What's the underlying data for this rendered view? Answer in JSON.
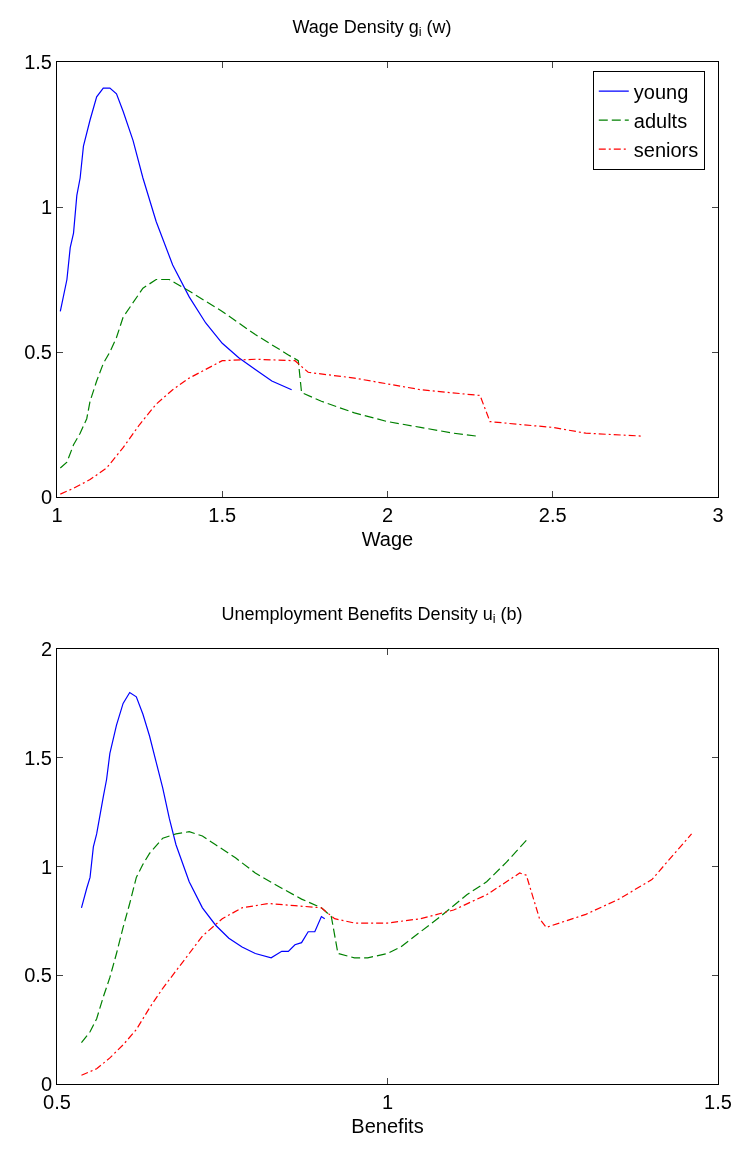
{
  "chart_data": [
    {
      "type": "line",
      "title": "Wage Density g$_{i}$ (w)",
      "xlabel": "Wage",
      "xlim": [
        1,
        3
      ],
      "xticks": [
        1,
        1.5,
        2,
        2.5,
        3
      ],
      "ylim": [
        0,
        1.5
      ],
      "yticks": [
        0,
        0.5,
        1,
        1.5
      ],
      "grid": false,
      "legend": "top right",
      "marker": "none",
      "series": [
        {
          "name": "young",
          "color": "#0000ff",
          "line_style": "solid",
          "x": [
            1.01,
            1.03,
            1.04,
            1.05,
            1.06,
            1.07,
            1.08,
            1.1,
            1.12,
            1.14,
            1.16,
            1.18,
            1.2,
            1.23,
            1.26,
            1.3,
            1.35,
            1.4,
            1.45,
            1.5,
            1.55,
            1.6,
            1.65,
            1.71
          ],
          "values": [
            0.64,
            0.75,
            0.86,
            0.91,
            1.04,
            1.1,
            1.21,
            1.3,
            1.38,
            1.41,
            1.41,
            1.39,
            1.33,
            1.23,
            1.1,
            0.95,
            0.8,
            0.69,
            0.6,
            0.53,
            0.48,
            0.44,
            0.4,
            0.37
          ]
        },
        {
          "name": "adults",
          "color": "#008000",
          "line_style": "dashed",
          "x": [
            1.01,
            1.03,
            1.05,
            1.07,
            1.09,
            1.1,
            1.12,
            1.14,
            1.16,
            1.18,
            1.2,
            1.23,
            1.26,
            1.3,
            1.34,
            1.4,
            1.5,
            1.6,
            1.7,
            1.73,
            1.74,
            1.8,
            1.9,
            2.0,
            2.1,
            2.2,
            2.27
          ],
          "values": [
            0.1,
            0.12,
            0.18,
            0.22,
            0.27,
            0.33,
            0.4,
            0.46,
            0.5,
            0.55,
            0.62,
            0.67,
            0.72,
            0.75,
            0.75,
            0.71,
            0.64,
            0.56,
            0.49,
            0.47,
            0.36,
            0.33,
            0.29,
            0.26,
            0.24,
            0.22,
            0.21
          ]
        },
        {
          "name": "seniors",
          "color": "#ff0000",
          "line_style": "dashdot",
          "x": [
            1.01,
            1.05,
            1.1,
            1.15,
            1.2,
            1.25,
            1.3,
            1.35,
            1.4,
            1.5,
            1.6,
            1.72,
            1.76,
            1.9,
            2.0,
            2.1,
            2.28,
            2.31,
            2.4,
            2.5,
            2.6,
            2.77
          ],
          "values": [
            0.01,
            0.03,
            0.06,
            0.1,
            0.17,
            0.25,
            0.32,
            0.37,
            0.41,
            0.47,
            0.475,
            0.47,
            0.43,
            0.41,
            0.39,
            0.37,
            0.35,
            0.26,
            0.25,
            0.24,
            0.22,
            0.21
          ]
        }
      ]
    },
    {
      "type": "line",
      "title": "Unemployment Benefits Density u$_{i}$ (b)",
      "xlabel": "Benefits",
      "xlim": [
        0.5,
        1.5
      ],
      "xticks": [
        0.5,
        1,
        1.5
      ],
      "ylim": [
        0,
        2
      ],
      "yticks": [
        0,
        0.5,
        1,
        1.5,
        2
      ],
      "grid": false,
      "legend": false,
      "marker": "none",
      "series": [
        {
          "color": "#0000ff",
          "line_style": "solid",
          "x": [
            0.537,
            0.545,
            0.55,
            0.555,
            0.56,
            0.57,
            0.575,
            0.58,
            0.59,
            0.6,
            0.61,
            0.62,
            0.63,
            0.64,
            0.65,
            0.66,
            0.67,
            0.68,
            0.7,
            0.72,
            0.74,
            0.76,
            0.78,
            0.8,
            0.824,
            0.84,
            0.85,
            0.86,
            0.87,
            0.88,
            0.89,
            0.9,
            0.905
          ],
          "values": [
            0.81,
            0.9,
            0.95,
            1.09,
            1.15,
            1.32,
            1.4,
            1.52,
            1.65,
            1.75,
            1.8,
            1.78,
            1.7,
            1.6,
            1.48,
            1.36,
            1.22,
            1.1,
            0.93,
            0.81,
            0.73,
            0.67,
            0.63,
            0.6,
            0.58,
            0.61,
            0.61,
            0.64,
            0.65,
            0.7,
            0.7,
            0.77,
            0.76
          ]
        },
        {
          "color": "#008000",
          "line_style": "dashed",
          "x": [
            0.537,
            0.55,
            0.56,
            0.57,
            0.58,
            0.59,
            0.6,
            0.61,
            0.62,
            0.63,
            0.64,
            0.66,
            0.68,
            0.7,
            0.72,
            0.74,
            0.77,
            0.8,
            0.84,
            0.87,
            0.9,
            0.915,
            0.925,
            0.95,
            0.97,
            1.0,
            1.02,
            1.05,
            1.08,
            1.12,
            1.15,
            1.18,
            1.21
          ],
          "values": [
            0.19,
            0.24,
            0.3,
            0.4,
            0.49,
            0.6,
            0.72,
            0.83,
            0.95,
            1.01,
            1.06,
            1.13,
            1.15,
            1.16,
            1.14,
            1.1,
            1.04,
            0.97,
            0.9,
            0.85,
            0.81,
            0.77,
            0.6,
            0.58,
            0.58,
            0.6,
            0.63,
            0.7,
            0.77,
            0.87,
            0.93,
            1.02,
            1.12
          ]
        },
        {
          "color": "#ff0000",
          "line_style": "dashdot",
          "x": [
            0.537,
            0.56,
            0.58,
            0.6,
            0.62,
            0.64,
            0.66,
            0.68,
            0.7,
            0.72,
            0.75,
            0.78,
            0.82,
            0.86,
            0.9,
            0.92,
            0.95,
            1.0,
            1.05,
            1.1,
            1.15,
            1.18,
            1.2,
            1.21,
            1.23,
            1.24,
            1.3,
            1.35,
            1.4,
            1.46
          ],
          "values": [
            0.04,
            0.07,
            0.12,
            0.18,
            0.25,
            0.35,
            0.44,
            0.52,
            0.6,
            0.68,
            0.76,
            0.81,
            0.83,
            0.82,
            0.81,
            0.76,
            0.74,
            0.74,
            0.76,
            0.8,
            0.87,
            0.93,
            0.97,
            0.96,
            0.76,
            0.72,
            0.78,
            0.85,
            0.94,
            1.15
          ]
        }
      ]
    }
  ]
}
